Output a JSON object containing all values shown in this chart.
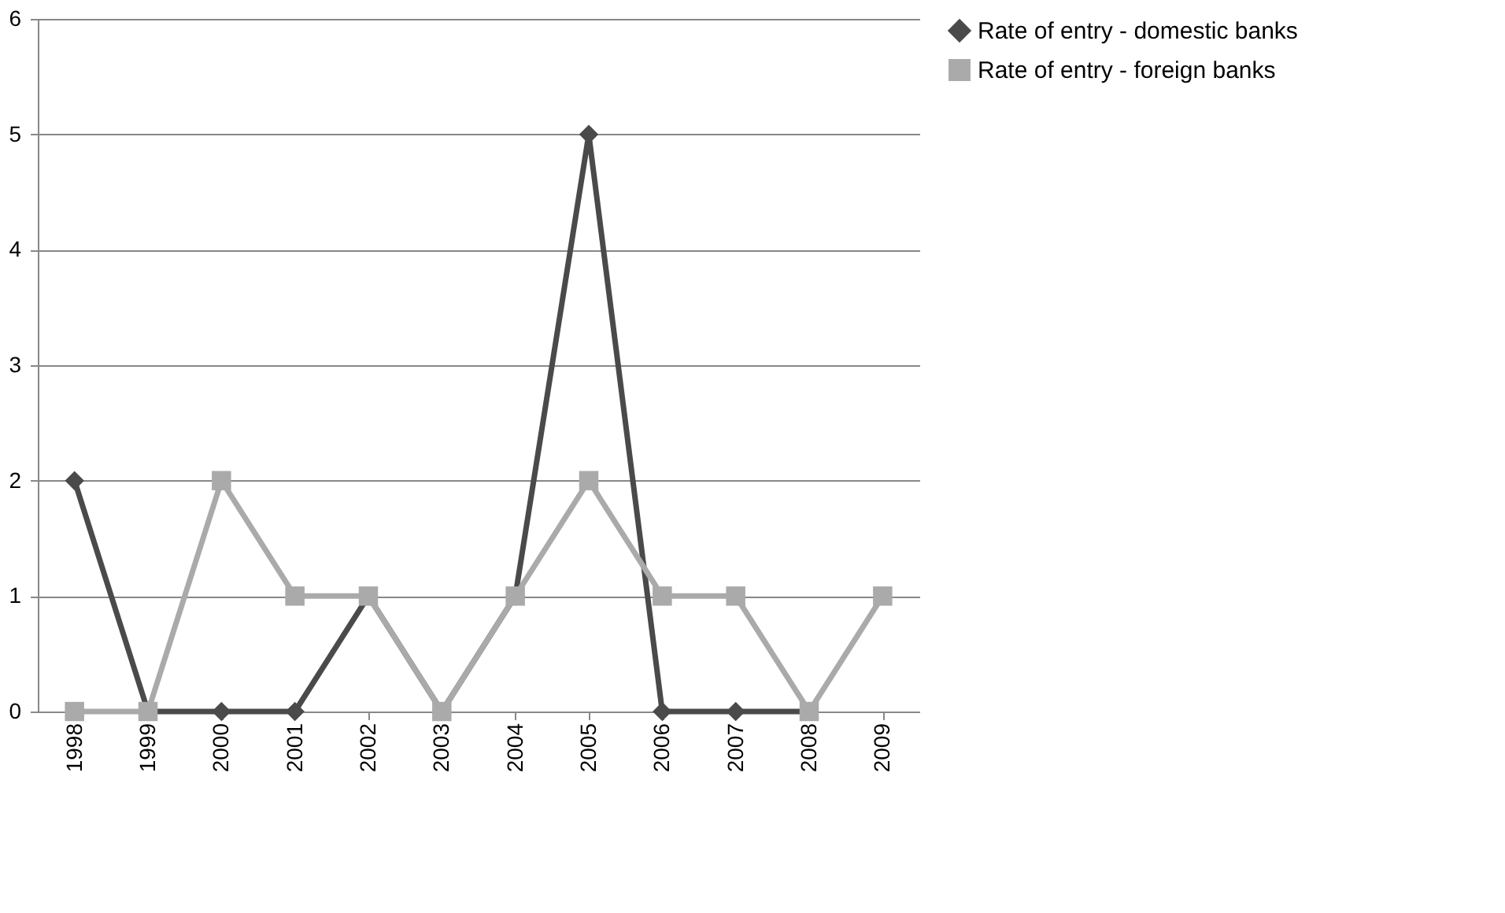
{
  "chart_data": {
    "type": "line",
    "categories": [
      "1998",
      "1999",
      "2000",
      "2001",
      "2002",
      "2003",
      "2004",
      "2005",
      "2006",
      "2007",
      "2008",
      "2009"
    ],
    "series": [
      {
        "name": "Rate of entry - domestic banks",
        "color": "#4a4a4a",
        "marker": "diamond",
        "values": [
          2,
          0,
          0,
          0,
          1,
          0,
          1,
          5,
          0,
          0,
          0,
          null
        ]
      },
      {
        "name": "Rate of entry  - foreign banks",
        "color": "#aaaaaa",
        "marker": "square",
        "values": [
          0,
          0,
          2,
          1,
          1,
          0,
          1,
          2,
          1,
          1,
          0,
          1
        ]
      }
    ],
    "ylim": [
      0,
      6
    ],
    "yticks": [
      0,
      1,
      2,
      3,
      4,
      5,
      6
    ],
    "grid": "y",
    "legend": "right",
    "line_style": "solid"
  }
}
